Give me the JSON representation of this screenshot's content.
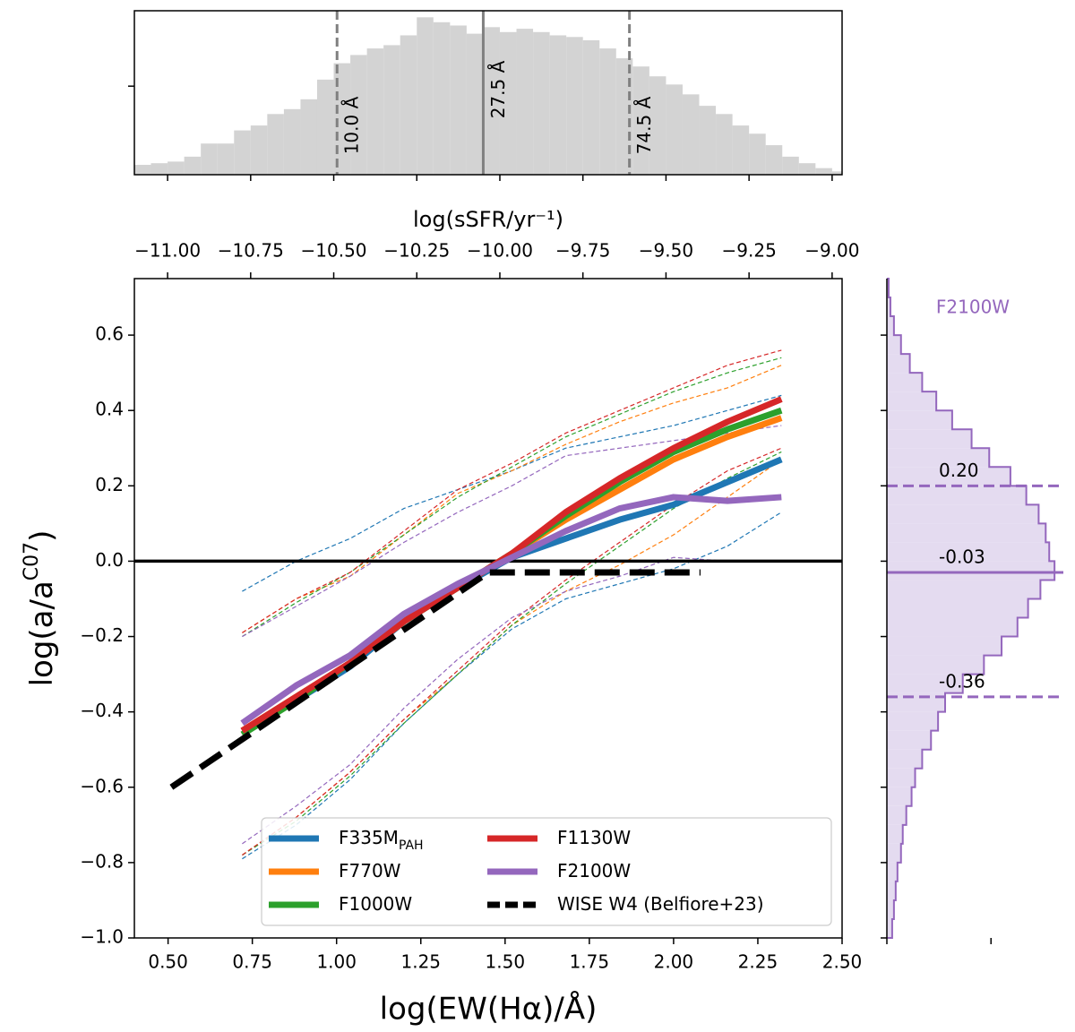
{
  "chart_data": [
    {
      "type": "histogram",
      "color": "#d3d3d3",
      "bins": [
        -11.1,
        -11.05,
        -11,
        -10.95,
        -10.9,
        -10.85,
        -10.8,
        -10.75,
        -10.7,
        -10.65,
        -10.6,
        -10.55,
        -10.5,
        -10.45,
        -10.4,
        -10.35,
        -10.3,
        -10.25,
        -10.2,
        -10.15,
        -10.1,
        -10.05,
        -10,
        -9.95,
        -9.9,
        -9.85,
        -9.8,
        -9.75,
        -9.7,
        -9.65,
        -9.6,
        -9.55,
        -9.5,
        -9.45,
        -9.4,
        -9.35,
        -9.3,
        -9.25,
        -9.2,
        -9.15,
        -9.1,
        -9.05,
        -9,
        -8.95
      ],
      "counts": [
        0.06,
        0.07,
        0.08,
        0.11,
        0.19,
        0.19,
        0.27,
        0.3,
        0.37,
        0.4,
        0.46,
        0.58,
        0.68,
        0.73,
        0.77,
        0.79,
        0.85,
        0.96,
        0.93,
        0.91,
        0.86,
        0.9,
        0.87,
        0.89,
        0.87,
        0.85,
        0.84,
        0.82,
        0.77,
        0.71,
        0.66,
        0.6,
        0.55,
        0.49,
        0.42,
        0.37,
        0.3,
        0.25,
        0.18,
        0.11,
        0.07,
        0.04,
        0.02
      ],
      "xlim": [
        -11.1,
        -8.97
      ],
      "xticks": [
        -11,
        -10.75,
        -10.5,
        -10.25,
        -10,
        -9.75,
        -9.5,
        -9.25,
        -9
      ],
      "ylim": [
        0,
        1
      ],
      "yticks": [
        0.54
      ],
      "line_color": "#808080",
      "vlines": [
        {
          "value": -10.49,
          "label": "10.0 Å",
          "style": "dashed"
        },
        {
          "value": -10.05,
          "label": "27.5 Å",
          "style": "solid"
        },
        {
          "value": -9.61,
          "label": "74.5 Å",
          "style": "dashed"
        }
      ]
    },
    {
      "type": "line",
      "xlabel": "log(EW(Hα)/Å)",
      "ylabel": [
        "log(a/a",
        "C07",
        ")"
      ],
      "top_xlabel": "log(sSFR/yr⁻¹)",
      "top_xlim": [
        -11.1,
        -8.97
      ],
      "top_xticks": [
        {
          "value": -11,
          "label": "−11.00"
        },
        {
          "value": -10.75,
          "label": "−10.75"
        },
        {
          "value": -10.5,
          "label": "−10.50"
        },
        {
          "value": -10.25,
          "label": "−10.25"
        },
        {
          "value": -10,
          "label": "−10.00"
        },
        {
          "value": -9.75,
          "label": "−9.75"
        },
        {
          "value": -9.5,
          "label": "−9.50"
        },
        {
          "value": -9.25,
          "label": "−9.25"
        },
        {
          "value": -9,
          "label": "−9.00"
        }
      ],
      "xlim": [
        0.4,
        2.5
      ],
      "xticks": [
        {
          "value": 0.5,
          "label": "0.50"
        },
        {
          "value": 0.75,
          "label": "0.75"
        },
        {
          "value": 1,
          "label": "1.00"
        },
        {
          "value": 1.25,
          "label": "1.25"
        },
        {
          "value": 1.5,
          "label": "1.50"
        },
        {
          "value": 1.75,
          "label": "1.75"
        },
        {
          "value": 2,
          "label": "2.00"
        },
        {
          "value": 2.25,
          "label": "2.25"
        },
        {
          "value": 2.5,
          "label": "2.50"
        }
      ],
      "ylim": [
        -1.0,
        0.75
      ],
      "yticks": [
        {
          "value": 0.6,
          "label": "0.6"
        },
        {
          "value": 0.4,
          "label": "0.4"
        },
        {
          "value": 0.2,
          "label": "0.2"
        },
        {
          "value": 0,
          "label": "0.0"
        },
        {
          "value": -0.2,
          "label": "−0.2"
        },
        {
          "value": -0.4,
          "label": "−0.4"
        },
        {
          "value": -0.6,
          "label": "−0.6"
        },
        {
          "value": -0.8,
          "label": "−0.8"
        },
        {
          "value": -1.0,
          "label": "−1.0"
        }
      ],
      "x": [
        0.72,
        0.88,
        1.04,
        1.2,
        1.36,
        1.52,
        1.68,
        1.84,
        2.0,
        2.16,
        2.32
      ],
      "series": [
        {
          "name": "F335M",
          "name_sub": "PAH",
          "color": "#1f77b4",
          "values": [
            -0.45,
            -0.37,
            -0.28,
            -0.16,
            -0.07,
            0.01,
            0.06,
            0.11,
            0.15,
            0.21,
            0.27
          ],
          "upper": [
            -0.08,
            0.0,
            0.06,
            0.14,
            0.19,
            0.24,
            0.3,
            0.33,
            0.36,
            0.4,
            0.44
          ],
          "lower": [
            -0.79,
            -0.7,
            -0.58,
            -0.43,
            -0.3,
            -0.18,
            -0.1,
            -0.06,
            -0.02,
            0.04,
            0.13
          ]
        },
        {
          "name": "F770W",
          "color": "#ff7f0e",
          "values": [
            -0.45,
            -0.36,
            -0.27,
            -0.16,
            -0.07,
            0.02,
            0.11,
            0.19,
            0.27,
            0.33,
            0.38
          ],
          "upper": [
            -0.19,
            -0.1,
            -0.04,
            0.07,
            0.18,
            0.24,
            0.31,
            0.37,
            0.42,
            0.46,
            0.52
          ],
          "lower": [
            -0.78,
            -0.68,
            -0.56,
            -0.42,
            -0.3,
            -0.17,
            -0.08,
            -0.01,
            0.07,
            0.17,
            0.27
          ]
        },
        {
          "name": "F1000W",
          "color": "#2ca02c",
          "values": [
            -0.46,
            -0.37,
            -0.27,
            -0.16,
            -0.07,
            0.02,
            0.12,
            0.21,
            0.29,
            0.35,
            0.4
          ],
          "upper": [
            -0.2,
            -0.11,
            -0.03,
            0.07,
            0.17,
            0.25,
            0.33,
            0.39,
            0.45,
            0.5,
            0.54
          ],
          "lower": [
            -0.78,
            -0.69,
            -0.57,
            -0.43,
            -0.3,
            -0.17,
            -0.06,
            0.04,
            0.14,
            0.22,
            0.29
          ]
        },
        {
          "name": "F1130W",
          "color": "#d62728",
          "values": [
            -0.45,
            -0.36,
            -0.27,
            -0.16,
            -0.07,
            0.02,
            0.13,
            0.22,
            0.3,
            0.37,
            0.43
          ],
          "upper": [
            -0.19,
            -0.1,
            -0.03,
            0.08,
            0.19,
            0.26,
            0.34,
            0.4,
            0.46,
            0.52,
            0.56
          ],
          "lower": [
            -0.78,
            -0.68,
            -0.56,
            -0.42,
            -0.29,
            -0.16,
            -0.05,
            0.05,
            0.15,
            0.24,
            0.3
          ]
        },
        {
          "name": "F2100W",
          "color": "#9467bd",
          "values": [
            -0.43,
            -0.33,
            -0.25,
            -0.14,
            -0.06,
            0.01,
            0.08,
            0.14,
            0.17,
            0.16,
            0.17
          ],
          "upper": [
            -0.2,
            -0.12,
            -0.04,
            0.05,
            0.13,
            0.2,
            0.28,
            0.3,
            0.32,
            0.34,
            0.36
          ],
          "lower": [
            -0.75,
            -0.65,
            -0.54,
            -0.39,
            -0.26,
            -0.15,
            -0.08,
            -0.04,
            0.01,
            0.0,
            0.0
          ]
        }
      ],
      "reference": {
        "name": "WISE W4 (Belfiore+23)",
        "color": "#000000",
        "x": [
          0.51,
          1.45,
          2.08
        ],
        "values": [
          -0.6,
          -0.03,
          -0.03
        ]
      },
      "hline": 0,
      "legend": "lower center"
    },
    {
      "type": "histogram",
      "orientation": "horizontal",
      "title": "F2100W",
      "color": "#9467bd",
      "fill": "#e4dbf0",
      "bins": [
        -1,
        -0.95,
        -0.9,
        -0.85,
        -0.8,
        -0.75,
        -0.7,
        -0.65,
        -0.6,
        -0.55,
        -0.5,
        -0.45,
        -0.4,
        -0.35,
        -0.3,
        -0.25,
        -0.2,
        -0.15,
        -0.1,
        -0.05,
        0,
        0.05,
        0.1,
        0.15,
        0.2,
        0.25,
        0.3,
        0.35,
        0.4,
        0.45,
        0.5,
        0.55,
        0.6,
        0.65,
        0.7,
        0.75
      ],
      "counts": [
        0.03,
        0.04,
        0.05,
        0.06,
        0.08,
        0.09,
        0.11,
        0.14,
        0.16,
        0.2,
        0.25,
        0.29,
        0.33,
        0.43,
        0.55,
        0.65,
        0.74,
        0.8,
        0.87,
        0.95,
        0.92,
        0.9,
        0.86,
        0.79,
        0.7,
        0.58,
        0.48,
        0.37,
        0.28,
        0.2,
        0.13,
        0.08,
        0.04,
        0.02,
        0.01
      ],
      "xlim": [
        0,
        1
      ],
      "xticks": [
        0,
        0.59
      ],
      "hlines": [
        {
          "value": 0.2,
          "label": "0.20",
          "style": "dashed"
        },
        {
          "value": -0.03,
          "label": "-0.03",
          "style": "solid"
        },
        {
          "value": -0.36,
          "label": "-0.36",
          "style": "dashed"
        }
      ]
    }
  ]
}
